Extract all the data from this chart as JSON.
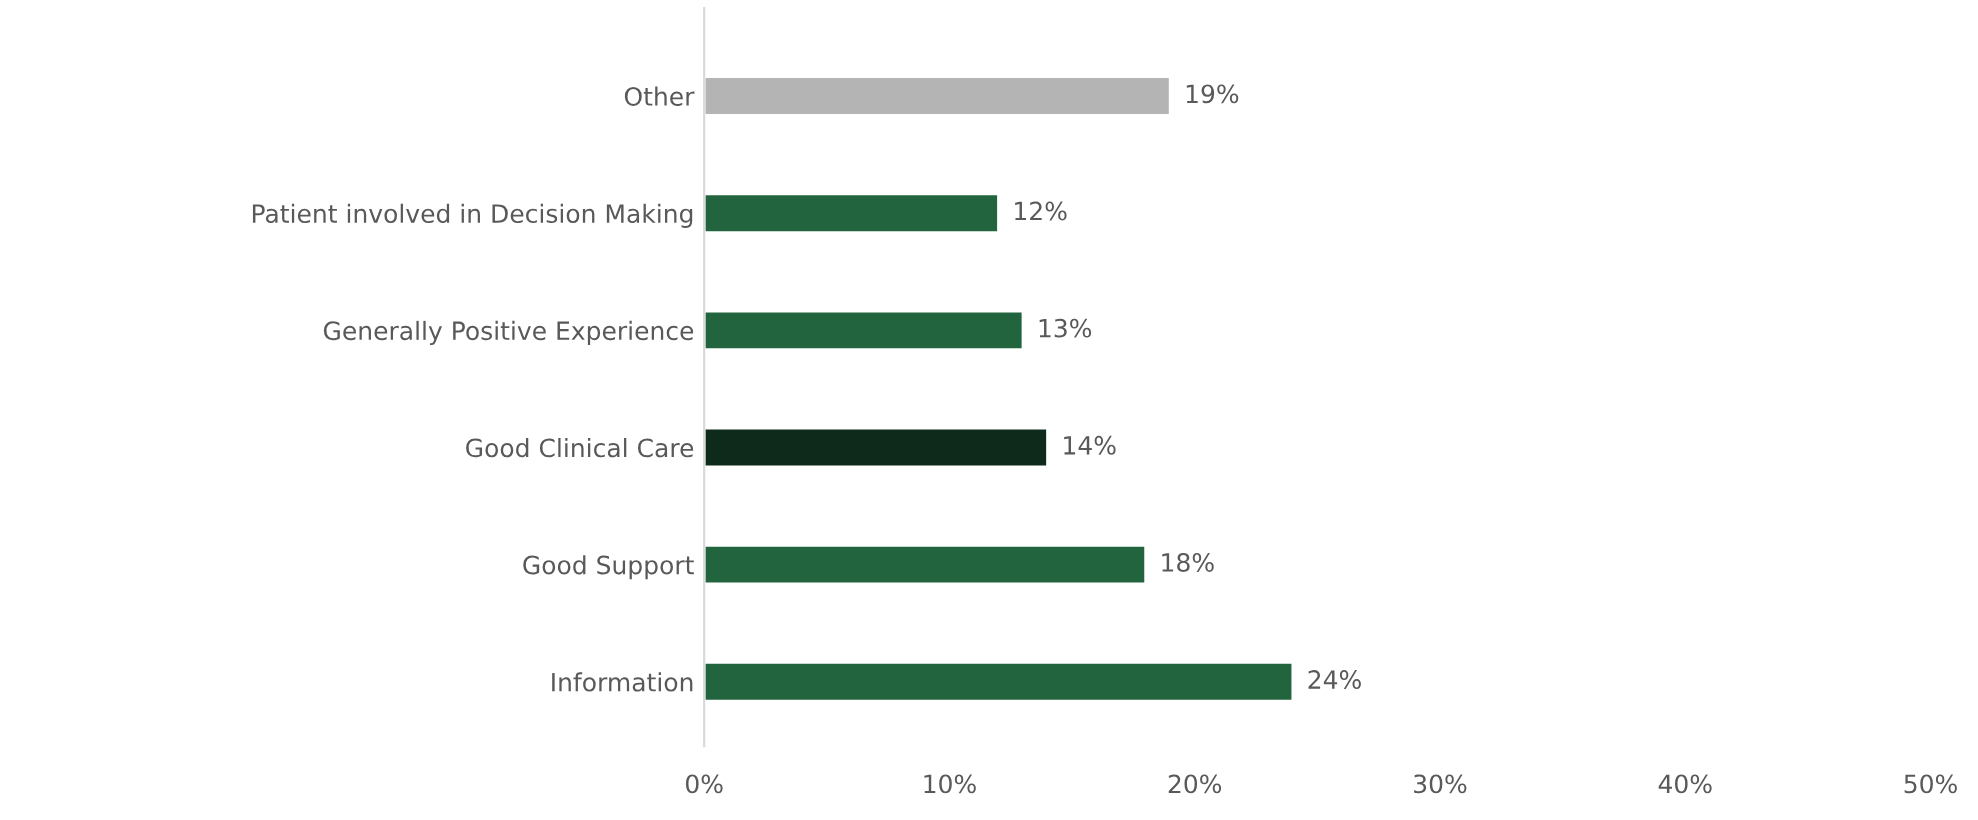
{
  "chart_data": {
    "type": "bar",
    "orientation": "horizontal",
    "categories": [
      "Other",
      "Patient involved in Decision Making",
      "Generally Positive Experience",
      "Good Clinical Care",
      "Good Support",
      "Information"
    ],
    "values": [
      19,
      12,
      13,
      14,
      18,
      24
    ],
    "colors": [
      "#b4b4b4",
      "#22643e",
      "#22643e",
      "#0e2a1a",
      "#22643e",
      "#22643e"
    ],
    "value_labels": [
      "19%",
      "12%",
      "13%",
      "14%",
      "18%",
      "24%"
    ],
    "xlim": [
      0,
      50
    ],
    "xticks": [
      {
        "value": 0,
        "label": "0%"
      },
      {
        "value": 10,
        "label": "10%"
      },
      {
        "value": 20,
        "label": "20%"
      },
      {
        "value": 30,
        "label": "30%"
      },
      {
        "value": 40,
        "label": "40%"
      },
      {
        "value": 50,
        "label": "50%"
      }
    ],
    "grid": false,
    "legend": false
  }
}
